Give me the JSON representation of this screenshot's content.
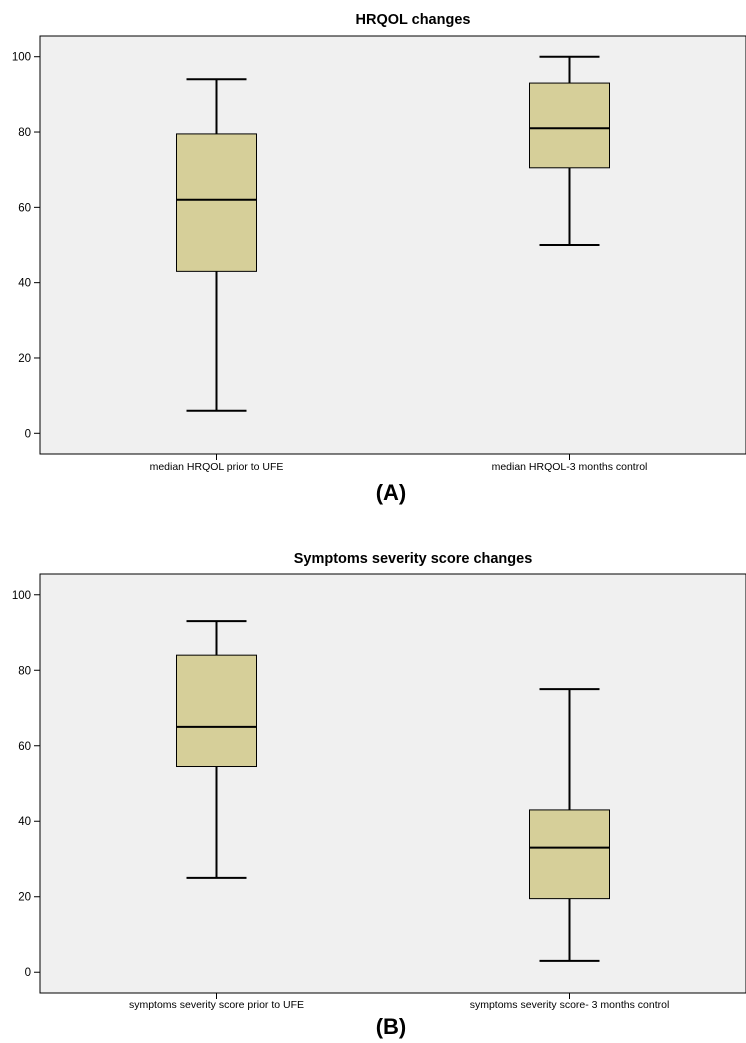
{
  "colors": {
    "plot_bg": "#f0f0f0",
    "box_fill": "#d6cf99",
    "stroke": "#000000"
  },
  "chart_data": [
    {
      "type": "box",
      "title": "HRQOL changes",
      "panel_label": "(A)",
      "categories": [
        "median HRQOL prior to UFE",
        "median HRQOL-3 months control"
      ],
      "boxes": [
        {
          "min": 6,
          "q1": 43,
          "median": 62,
          "q3": 79.5,
          "max": 94
        },
        {
          "min": 50,
          "q1": 70.5,
          "median": 81,
          "q3": 93,
          "max": 100
        }
      ],
      "yticks": [
        0,
        20,
        40,
        60,
        80,
        100
      ],
      "ylim": [
        -5.5,
        105.5
      ],
      "xlabel": "",
      "ylabel": ""
    },
    {
      "type": "box",
      "title": "Symptoms severity score changes",
      "panel_label": "(B)",
      "categories": [
        "symptoms severity score prior to UFE",
        "symptoms severity score- 3 months control"
      ],
      "boxes": [
        {
          "min": 25,
          "q1": 54.5,
          "median": 65,
          "q3": 84,
          "max": 93
        },
        {
          "min": 3,
          "q1": 19.5,
          "median": 33,
          "q3": 43,
          "max": 75
        }
      ],
      "yticks": [
        0,
        20,
        40,
        60,
        80,
        100
      ],
      "ylim": [
        -5.5,
        105.5
      ],
      "xlabel": "",
      "ylabel": ""
    }
  ]
}
